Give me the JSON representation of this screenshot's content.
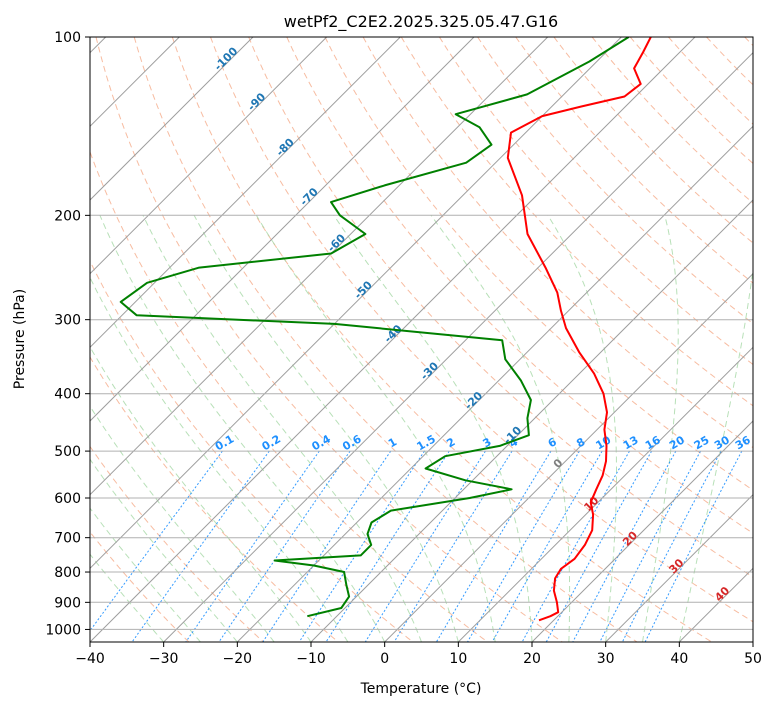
{
  "chart_data": {
    "type": "line",
    "subtype": "skew-T log-p diagram",
    "title": "wetPf2_C2E2.2025.325.05.47.G16",
    "xlabel": "Temperature (°C)",
    "ylabel": "Pressure (hPa)",
    "xlim": [
      -40,
      50
    ],
    "ylim": [
      1050,
      100
    ],
    "y_scale": "log",
    "x_ticks": [
      "−40",
      "−30",
      "−20",
      "−10",
      "0",
      "10",
      "20",
      "30",
      "40",
      "50"
    ],
    "y_ticks": [
      "100",
      "200",
      "300",
      "400",
      "500",
      "600",
      "700",
      "800",
      "900",
      "1000"
    ],
    "grid": true,
    "background_lines": {
      "dry_adiabats": "dashed, orange-red",
      "moist_adiabats": "dashed, green",
      "mixing_ratio_lines": "dotted, blue",
      "isotherms": "solid, grey, skewed"
    },
    "temperature_label_color": "#1f77b4",
    "temperature_labels": [
      {
        "text": "-100",
        "value": -100,
        "p": 110
      },
      {
        "text": "-90",
        "value": -90,
        "p": 130
      },
      {
        "text": "-80",
        "value": -80,
        "p": 155
      },
      {
        "text": "-70",
        "value": -70,
        "p": 188
      },
      {
        "text": "-60",
        "value": -60,
        "p": 225
      },
      {
        "text": "-50",
        "value": -50,
        "p": 270
      },
      {
        "text": "-40",
        "value": -40,
        "p": 320
      },
      {
        "text": "-30",
        "value": -30,
        "p": 370
      },
      {
        "text": "-20",
        "value": -20,
        "p": 415
      },
      {
        "text": "-10",
        "value": -10,
        "p": 475
      }
    ],
    "mixing_ratio_label_color": "#1e90ff",
    "mixing_ratio_labels": [
      "0.1",
      "0.2",
      "0.4",
      "0.6",
      "1",
      "1.5",
      "2",
      "3",
      "4",
      "6",
      "8",
      "10",
      "13",
      "16",
      "20",
      "25",
      "30",
      "36"
    ],
    "freezing_label": "0",
    "freezing_label_color": "#7f7f7f",
    "warm_isotherm_color": "#d62728",
    "warm_isotherm_labels": [
      "10",
      "20",
      "30",
      "40"
    ],
    "series": [
      {
        "color": "#ff0000",
        "points": [
          {
            "p": 100,
            "t": -46
          },
          {
            "p": 106,
            "t": -45
          },
          {
            "p": 113,
            "t": -44
          },
          {
            "p": 120,
            "t": -41
          },
          {
            "p": 126,
            "t": -41.5
          },
          {
            "p": 131,
            "t": -46
          },
          {
            "p": 136,
            "t": -50
          },
          {
            "p": 145,
            "t": -52
          },
          {
            "p": 160,
            "t": -49
          },
          {
            "p": 185,
            "t": -42
          },
          {
            "p": 215,
            "t": -36
          },
          {
            "p": 245,
            "t": -29
          },
          {
            "p": 270,
            "t": -24
          },
          {
            "p": 290,
            "t": -21
          },
          {
            "p": 310,
            "t": -18
          },
          {
            "p": 340,
            "t": -13
          },
          {
            "p": 370,
            "t": -8
          },
          {
            "p": 400,
            "t": -4
          },
          {
            "p": 430,
            "t": -1
          },
          {
            "p": 460,
            "t": 1
          },
          {
            "p": 490,
            "t": 3.5
          },
          {
            "p": 520,
            "t": 5.5
          },
          {
            "p": 550,
            "t": 7
          },
          {
            "p": 580,
            "t": 8
          },
          {
            "p": 610,
            "t": 9
          },
          {
            "p": 640,
            "t": 11
          },
          {
            "p": 680,
            "t": 13
          },
          {
            "p": 720,
            "t": 14
          },
          {
            "p": 760,
            "t": 14.5
          },
          {
            "p": 790,
            "t": 14
          },
          {
            "p": 820,
            "t": 14.5
          },
          {
            "p": 860,
            "t": 16
          },
          {
            "p": 900,
            "t": 18
          },
          {
            "p": 935,
            "t": 19.5
          },
          {
            "p": 950,
            "t": 19
          },
          {
            "p": 965,
            "t": 18
          }
        ]
      },
      {
        "color": "#008000",
        "points": [
          {
            "p": 100,
            "t": -49
          },
          {
            "p": 110,
            "t": -51
          },
          {
            "p": 125,
            "t": -55
          },
          {
            "p": 135,
            "t": -62
          },
          {
            "p": 142,
            "t": -57
          },
          {
            "p": 152,
            "t": -53
          },
          {
            "p": 163,
            "t": -54
          },
          {
            "p": 178,
            "t": -62
          },
          {
            "p": 190,
            "t": -67
          },
          {
            "p": 200,
            "t": -64
          },
          {
            "p": 215,
            "t": -58
          },
          {
            "p": 232,
            "t": -60
          },
          {
            "p": 245,
            "t": -76
          },
          {
            "p": 260,
            "t": -81
          },
          {
            "p": 280,
            "t": -82
          },
          {
            "p": 295,
            "t": -78
          },
          {
            "p": 305,
            "t": -50
          },
          {
            "p": 325,
            "t": -25
          },
          {
            "p": 350,
            "t": -22
          },
          {
            "p": 380,
            "t": -17
          },
          {
            "p": 410,
            "t": -13
          },
          {
            "p": 440,
            "t": -11
          },
          {
            "p": 470,
            "t": -8.5
          },
          {
            "p": 490,
            "t": -11
          },
          {
            "p": 510,
            "t": -17
          },
          {
            "p": 535,
            "t": -18
          },
          {
            "p": 560,
            "t": -11
          },
          {
            "p": 580,
            "t": -3.5
          },
          {
            "p": 600,
            "t": -8
          },
          {
            "p": 630,
            "t": -17
          },
          {
            "p": 660,
            "t": -18
          },
          {
            "p": 690,
            "t": -17
          },
          {
            "p": 720,
            "t": -15
          },
          {
            "p": 750,
            "t": -15
          },
          {
            "p": 765,
            "t": -26
          },
          {
            "p": 780,
            "t": -20
          },
          {
            "p": 800,
            "t": -15
          },
          {
            "p": 840,
            "t": -13
          },
          {
            "p": 880,
            "t": -11
          },
          {
            "p": 920,
            "t": -10.5
          },
          {
            "p": 950,
            "t": -14
          }
        ]
      }
    ]
  }
}
